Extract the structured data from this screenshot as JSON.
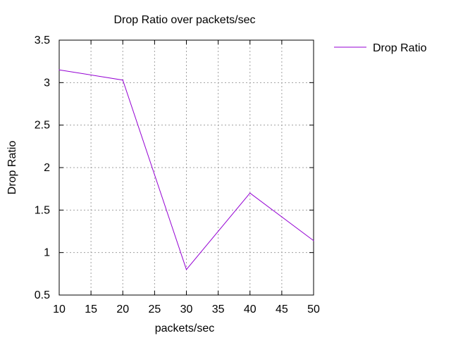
{
  "chart_data": {
    "type": "line",
    "title": "Drop Ratio over packets/sec",
    "xlabel": "packets/sec",
    "ylabel": "Drop Ratio",
    "xlim": [
      10,
      50
    ],
    "ylim": [
      0.5,
      3.5
    ],
    "xticks": [
      10,
      15,
      20,
      25,
      30,
      35,
      40,
      45,
      50
    ],
    "yticks": [
      0.5,
      1,
      1.5,
      2,
      2.5,
      3,
      3.5
    ],
    "xtick_labels": [
      "10",
      "15",
      "20",
      "25",
      "30",
      "35",
      "40",
      "45",
      "50"
    ],
    "ytick_labels": [
      "0.5",
      "1",
      "1.5",
      "2",
      "2.5",
      "3",
      "3.5"
    ],
    "grid": true,
    "legend_position": "top-right outside",
    "series": [
      {
        "name": "Drop Ratio",
        "color": "#9400d3",
        "x": [
          10,
          20,
          30,
          40,
          50
        ],
        "y": [
          3.15,
          3.03,
          0.8,
          1.7,
          1.14
        ]
      }
    ]
  }
}
